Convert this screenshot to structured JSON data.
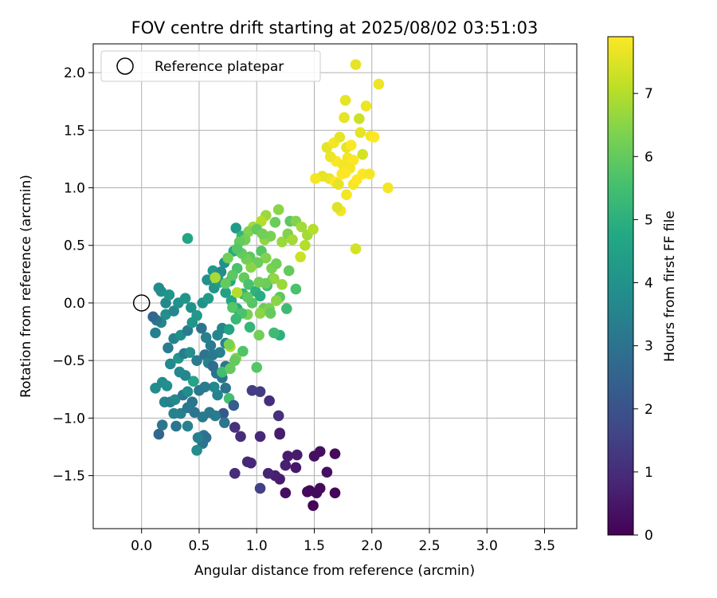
{
  "chart_data": {
    "type": "scatter",
    "title": "FOV centre drift starting at 2025/08/02 03:51:03",
    "xlabel": "Angular distance from reference (arcmin)",
    "ylabel": "Rotation from reference (arcmin)",
    "xlim": [
      -0.42,
      3.78
    ],
    "ylim": [
      -1.96,
      2.25
    ],
    "x_ticks": [
      0.0,
      0.5,
      1.0,
      1.5,
      2.0,
      2.5,
      3.0,
      3.5
    ],
    "x_tick_labels": [
      "0.0",
      "0.5",
      "1.0",
      "1.5",
      "2.0",
      "2.5",
      "3.0",
      "3.5"
    ],
    "y_ticks": [
      -1.5,
      -1.0,
      -0.5,
      0.0,
      0.5,
      1.0,
      1.5,
      2.0
    ],
    "y_tick_labels": [
      "−1.5",
      "−1.0",
      "−0.5",
      "0.0",
      "0.5",
      "1.0",
      "1.5",
      "2.0"
    ],
    "grid": true,
    "legend": {
      "position": "top-left",
      "entries": [
        {
          "label": "Reference platepar",
          "marker": "open-circle",
          "x": 0.0,
          "y": 0.0
        }
      ]
    },
    "colorbar": {
      "label": "Hours from first FF file",
      "colormap": "viridis",
      "range": [
        0,
        7.9
      ],
      "ticks": [
        0,
        1,
        2,
        3,
        4,
        5,
        6,
        7
      ],
      "tick_labels": [
        "0",
        "1",
        "2",
        "3",
        "4",
        "5",
        "6",
        "7"
      ]
    },
    "colors": [
      "#440154",
      "#482475",
      "#414487",
      "#355f8d",
      "#2a788e",
      "#21918c",
      "#22a884",
      "#44bf70",
      "#7ad151",
      "#bddf26",
      "#fde725"
    ],
    "points": [
      [
        1.49,
        -1.76,
        0.1
      ],
      [
        1.68,
        -1.65,
        0.1
      ],
      [
        1.52,
        -1.65,
        0.2
      ],
      [
        1.46,
        -1.63,
        0.2
      ],
      [
        1.55,
        -1.61,
        0.2
      ],
      [
        1.25,
        -1.65,
        0.3
      ],
      [
        1.44,
        -1.64,
        0.2
      ],
      [
        1.61,
        -1.47,
        0.3
      ],
      [
        1.55,
        -1.29,
        0.3
      ],
      [
        1.5,
        -1.33,
        0.3
      ],
      [
        1.68,
        -1.31,
        0.2
      ],
      [
        1.34,
        -1.43,
        0.5
      ],
      [
        1.35,
        -1.32,
        0.6
      ],
      [
        1.27,
        -1.33,
        0.6
      ],
      [
        1.25,
        -1.41,
        0.7
      ],
      [
        1.2,
        -1.53,
        0.6
      ],
      [
        1.16,
        -1.5,
        0.7
      ],
      [
        1.1,
        -1.48,
        0.8
      ],
      [
        1.03,
        -1.61,
        1.5
      ],
      [
        0.95,
        -1.39,
        0.9
      ],
      [
        0.92,
        -1.38,
        0.9
      ],
      [
        0.81,
        -1.48,
        1.0
      ],
      [
        1.2,
        -1.14,
        0.6
      ],
      [
        1.2,
        -1.13,
        0.6
      ],
      [
        1.03,
        -1.16,
        0.9
      ],
      [
        0.86,
        -1.16,
        1.0
      ],
      [
        0.81,
        -1.08,
        1.1
      ],
      [
        1.19,
        -0.98,
        1.1
      ],
      [
        1.11,
        -0.85,
        1.0
      ],
      [
        1.03,
        -0.77,
        1.4
      ],
      [
        0.96,
        -0.76,
        1.4
      ],
      [
        0.71,
        -0.96,
        2.2
      ],
      [
        0.54,
        -1.15,
        3.2
      ],
      [
        0.56,
        -1.17,
        2.9
      ],
      [
        0.53,
        -1.22,
        3.0
      ],
      [
        0.48,
        -1.28,
        3.8
      ],
      [
        0.49,
        -1.17,
        3.4
      ],
      [
        0.4,
        -1.07,
        3.5
      ],
      [
        0.3,
        -1.07,
        3.1
      ],
      [
        0.34,
        -0.96,
        3.4
      ],
      [
        0.15,
        -1.14,
        2.6
      ],
      [
        0.18,
        -1.06,
        3.1
      ],
      [
        0.12,
        -0.74,
        3.8
      ],
      [
        0.18,
        -0.69,
        3.8
      ],
      [
        0.22,
        -0.72,
        3.9
      ],
      [
        0.2,
        -0.86,
        3.6
      ],
      [
        0.25,
        -0.86,
        3.4
      ],
      [
        0.29,
        -0.84,
        3.7
      ],
      [
        0.28,
        -0.96,
        3.5
      ],
      [
        0.36,
        -0.8,
        3.2
      ],
      [
        0.4,
        -0.77,
        3.8
      ],
      [
        0.45,
        -0.68,
        4.6
      ],
      [
        0.38,
        -0.63,
        3.6
      ],
      [
        0.33,
        -0.6,
        3.7
      ],
      [
        0.25,
        -0.53,
        3.7
      ],
      [
        0.32,
        -0.48,
        4.1
      ],
      [
        0.37,
        -0.44,
        3.3
      ],
      [
        0.42,
        -0.43,
        3.9
      ],
      [
        0.48,
        -0.5,
        3.3
      ],
      [
        0.55,
        -0.45,
        3.0
      ],
      [
        0.58,
        -0.52,
        3.4
      ],
      [
        0.62,
        -0.55,
        2.8
      ],
      [
        0.65,
        -0.61,
        2.9
      ],
      [
        0.7,
        -0.65,
        3.1
      ],
      [
        0.73,
        -0.74,
        3.0
      ],
      [
        0.76,
        -0.83,
        5.5
      ],
      [
        0.8,
        -0.89,
        2.3
      ],
      [
        0.66,
        -0.8,
        3.5
      ],
      [
        0.63,
        -0.73,
        3.7
      ],
      [
        0.55,
        -0.73,
        3.3
      ],
      [
        0.5,
        -0.76,
        3.2
      ],
      [
        0.44,
        -0.86,
        3.0
      ],
      [
        0.4,
        -0.91,
        3.2
      ],
      [
        0.46,
        -0.95,
        3.1
      ],
      [
        0.53,
        -0.99,
        3.2
      ],
      [
        0.59,
        -0.95,
        3.2
      ],
      [
        0.64,
        -0.98,
        3.3
      ],
      [
        0.72,
        -1.04,
        3.1
      ],
      [
        0.23,
        -0.39,
        3.3
      ],
      [
        0.28,
        -0.31,
        3.5
      ],
      [
        0.34,
        -0.28,
        3.9
      ],
      [
        0.4,
        -0.24,
        3.3
      ],
      [
        0.44,
        -0.17,
        4.1
      ],
      [
        0.52,
        -0.22,
        3.0
      ],
      [
        0.56,
        -0.3,
        3.4
      ],
      [
        0.6,
        -0.37,
        3.3
      ],
      [
        0.66,
        -0.28,
        3.6
      ],
      [
        0.7,
        -0.22,
        3.6
      ],
      [
        0.73,
        -0.35,
        3.5
      ],
      [
        0.76,
        -0.23,
        4.6
      ],
      [
        0.68,
        -0.43,
        3.4
      ],
      [
        0.62,
        -0.45,
        3.2
      ],
      [
        0.12,
        -0.26,
        3.4
      ],
      [
        0.17,
        -0.17,
        3.6
      ],
      [
        0.21,
        -0.1,
        3.9
      ],
      [
        0.28,
        -0.07,
        3.6
      ],
      [
        0.32,
        0.0,
        4.0
      ],
      [
        0.38,
        0.04,
        4.1
      ],
      [
        0.43,
        -0.04,
        4.0
      ],
      [
        0.48,
        -0.11,
        4.2
      ],
      [
        0.53,
        0.0,
        4.0
      ],
      [
        0.58,
        0.04,
        4.3
      ],
      [
        0.63,
        0.13,
        4.1
      ],
      [
        0.68,
        0.18,
        4.4
      ],
      [
        0.73,
        0.09,
        4.5
      ],
      [
        0.78,
        0.02,
        4.7
      ],
      [
        0.83,
        -0.05,
        4.8
      ],
      [
        0.88,
        0.08,
        5.1
      ],
      [
        0.13,
        -0.15,
        3.1
      ],
      [
        0.17,
        0.1,
        4.0
      ],
      [
        0.21,
        0.0,
        3.7
      ],
      [
        0.15,
        0.13,
        3.8
      ],
      [
        0.1,
        -0.12,
        2.7
      ],
      [
        0.24,
        0.07,
        4.1
      ],
      [
        0.4,
        0.56,
        4.6
      ],
      [
        0.57,
        0.2,
        4.0
      ],
      [
        0.62,
        0.28,
        4.2
      ],
      [
        0.69,
        0.27,
        3.8
      ],
      [
        0.72,
        0.35,
        4.0
      ],
      [
        0.66,
        0.22,
        4.0
      ],
      [
        0.77,
        0.19,
        4.7
      ],
      [
        0.82,
        0.65,
        4.3
      ],
      [
        0.87,
        0.58,
        5.2
      ],
      [
        0.8,
        0.45,
        4.8
      ],
      [
        0.75,
        0.39,
        6.2
      ],
      [
        0.83,
        0.3,
        5.6
      ],
      [
        0.89,
        0.22,
        6.0
      ],
      [
        0.93,
        0.16,
        5.6
      ],
      [
        0.99,
        0.1,
        5.1
      ],
      [
        1.03,
        0.06,
        4.9
      ],
      [
        1.09,
        0.15,
        5.4
      ],
      [
        1.14,
        0.21,
        5.8
      ],
      [
        1.2,
        0.05,
        5.9
      ],
      [
        1.26,
        -0.05,
        5.4
      ],
      [
        1.2,
        -0.28,
        5.0
      ],
      [
        1.15,
        -0.26,
        5.4
      ],
      [
        1.02,
        -0.28,
        6.2
      ],
      [
        0.94,
        -0.21,
        5.2
      ],
      [
        0.92,
        -0.1,
        6.3
      ],
      [
        0.87,
        -0.09,
        5.6
      ],
      [
        0.82,
        -0.14,
        5.3
      ],
      [
        0.77,
        -0.38,
        6.9
      ],
      [
        0.76,
        -0.36,
        6.3
      ],
      [
        0.82,
        -0.48,
        6.4
      ],
      [
        0.88,
        -0.42,
        5.7
      ],
      [
        1.0,
        -0.56,
        5.8
      ],
      [
        0.73,
        -0.55,
        3.1
      ],
      [
        0.7,
        -0.6,
        5.5
      ],
      [
        0.77,
        -0.57,
        6.0
      ],
      [
        0.81,
        -0.5,
        6.0
      ],
      [
        0.94,
        0.4,
        5.9
      ],
      [
        0.99,
        0.35,
        6.0
      ],
      [
        1.04,
        0.45,
        5.8
      ],
      [
        1.07,
        0.55,
        6.6
      ],
      [
        1.12,
        0.58,
        6.3
      ],
      [
        1.16,
        0.7,
        6.1
      ],
      [
        1.22,
        0.53,
        6.7
      ],
      [
        1.27,
        0.6,
        6.4
      ],
      [
        1.31,
        0.55,
        6.8
      ],
      [
        1.29,
        0.71,
        5.9
      ],
      [
        1.34,
        0.71,
        6.4
      ],
      [
        1.39,
        0.66,
        6.8
      ],
      [
        1.44,
        0.59,
        6.8
      ],
      [
        1.42,
        0.5,
        7.0
      ],
      [
        1.38,
        0.4,
        7.3
      ],
      [
        1.49,
        0.64,
        7.0
      ],
      [
        1.19,
        0.81,
        6.5
      ],
      [
        1.08,
        0.76,
        6.7
      ],
      [
        1.04,
        0.71,
        7.0
      ],
      [
        0.97,
        0.66,
        6.8
      ],
      [
        0.93,
        0.62,
        6.4
      ],
      [
        0.9,
        0.55,
        6.2
      ],
      [
        0.85,
        0.53,
        6.0
      ],
      [
        1.0,
        0.64,
        6.0
      ],
      [
        1.05,
        0.6,
        6.2
      ],
      [
        1.08,
        0.39,
        6.4
      ],
      [
        1.01,
        0.35,
        6.1
      ],
      [
        0.95,
        0.31,
        6.5
      ],
      [
        0.91,
        0.38,
        6.2
      ],
      [
        0.87,
        0.43,
        6.0
      ],
      [
        0.83,
        0.47,
        5.8
      ],
      [
        1.13,
        0.3,
        6.3
      ],
      [
        1.17,
        0.34,
        6.2
      ],
      [
        1.15,
        0.21,
        6.6
      ],
      [
        1.08,
        0.17,
        6.1
      ],
      [
        1.02,
        0.18,
        6.2
      ],
      [
        1.28,
        0.28,
        6.0
      ],
      [
        1.34,
        0.12,
        5.6
      ],
      [
        1.22,
        0.16,
        6.7
      ],
      [
        0.64,
        0.22,
        6.9
      ],
      [
        0.73,
        0.17,
        6.0
      ],
      [
        0.79,
        0.24,
        5.9
      ],
      [
        0.83,
        0.09,
        7.0
      ],
      [
        0.79,
        -0.04,
        5.8
      ],
      [
        0.96,
        0.0,
        5.8
      ],
      [
        0.92,
        0.05,
        5.9
      ],
      [
        1.06,
        -0.05,
        6.1
      ],
      [
        1.11,
        -0.05,
        6.3
      ],
      [
        1.03,
        -0.09,
        6.5
      ],
      [
        1.12,
        -0.09,
        6.0
      ],
      [
        1.17,
        0.02,
        6.5
      ],
      [
        1.63,
        1.08,
        7.7
      ],
      [
        1.69,
        1.23,
        7.9
      ],
      [
        1.57,
        1.1,
        7.6
      ],
      [
        1.51,
        1.08,
        7.8
      ],
      [
        1.73,
        0.8,
        7.8
      ],
      [
        1.7,
        0.83,
        7.5
      ],
      [
        1.75,
        1.2,
        7.8
      ],
      [
        1.79,
        1.26,
        7.8
      ],
      [
        1.84,
        1.24,
        7.9
      ],
      [
        1.81,
        1.17,
        7.8
      ],
      [
        1.84,
        1.03,
        7.8
      ],
      [
        1.74,
        1.12,
        7.9
      ],
      [
        1.78,
        0.94,
        7.8
      ],
      [
        1.87,
        1.07,
        7.9
      ],
      [
        1.92,
        1.12,
        7.9
      ],
      [
        1.98,
        1.12,
        7.8
      ],
      [
        1.92,
        1.29,
        7.4
      ],
      [
        1.77,
        1.13,
        7.9
      ],
      [
        1.68,
        1.05,
        7.9
      ],
      [
        1.71,
        1.03,
        7.6
      ],
      [
        1.64,
        1.27,
        7.7
      ],
      [
        1.61,
        1.35,
        7.6
      ],
      [
        1.67,
        1.39,
        7.8
      ],
      [
        1.72,
        1.44,
        7.6
      ],
      [
        1.78,
        1.35,
        7.6
      ],
      [
        1.82,
        1.37,
        7.9
      ],
      [
        1.9,
        1.48,
        7.6
      ],
      [
        1.99,
        1.45,
        7.8
      ],
      [
        2.02,
        1.44,
        7.9
      ],
      [
        1.89,
        1.6,
        7.3
      ],
      [
        1.76,
        1.61,
        7.6
      ],
      [
        1.77,
        1.76,
        7.6
      ],
      [
        1.95,
        1.71,
        7.7
      ],
      [
        2.06,
        1.9,
        7.7
      ],
      [
        1.86,
        2.07,
        7.6
      ],
      [
        2.14,
        1.0,
        7.8
      ],
      [
        1.86,
        0.47,
        7.4
      ]
    ]
  }
}
